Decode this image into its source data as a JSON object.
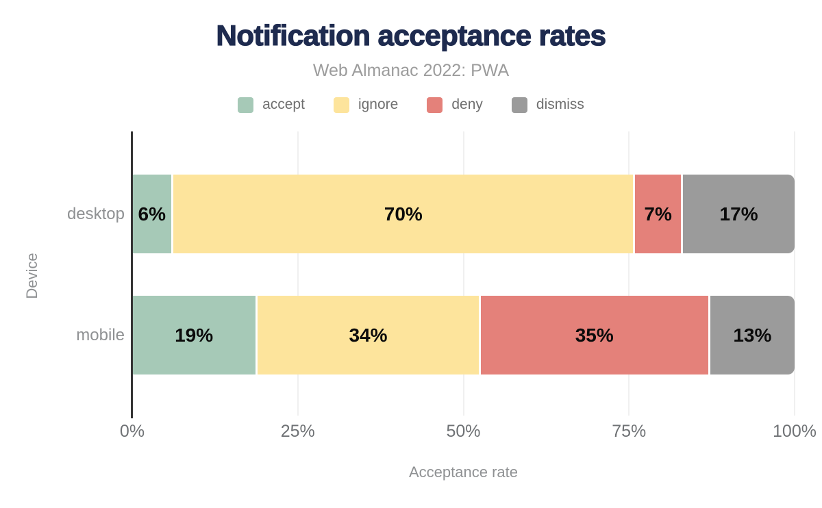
{
  "chart_data": {
    "type": "bar",
    "variant": "horizontal-stacked",
    "title": "Notification acceptance rates",
    "subtitle": "Web Almanac 2022: PWA",
    "xlabel": "Acceptance rate",
    "ylabel": "Device",
    "categories": [
      "desktop",
      "mobile"
    ],
    "series": [
      {
        "name": "accept",
        "color": "#a6c9b7",
        "values": [
          6,
          19
        ]
      },
      {
        "name": "ignore",
        "color": "#fde49c",
        "values": [
          70,
          34
        ]
      },
      {
        "name": "deny",
        "color": "#e4817a",
        "values": [
          7,
          35
        ]
      },
      {
        "name": "dismiss",
        "color": "#9b9b9b",
        "values": [
          17,
          13
        ]
      }
    ],
    "value_label_suffix": "%",
    "x_ticks": [
      {
        "label": "0%",
        "value": 0
      },
      {
        "label": "25%",
        "value": 25
      },
      {
        "label": "50%",
        "value": 50
      },
      {
        "label": "75%",
        "value": 75
      },
      {
        "label": "100%",
        "value": 100
      }
    ],
    "xlim": [
      0,
      100
    ],
    "grid": "vertical",
    "legend_position": "top"
  },
  "colors": {
    "title": "#1e2b4f",
    "subtitle": "#9c9c9c",
    "legend_text": "#6f6f6f",
    "axis_line": "#333333",
    "gridline": "#f0f0f0",
    "tick_text": "#6f7275",
    "axis_title_text": "#8f9193",
    "background": "#ffffff"
  }
}
